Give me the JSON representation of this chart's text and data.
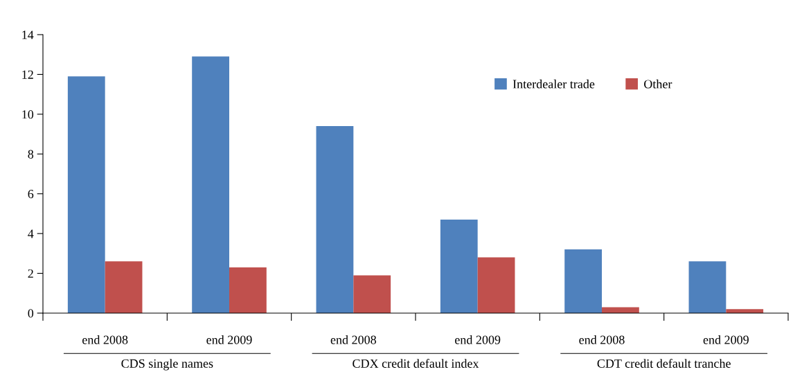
{
  "chart_data": {
    "type": "bar",
    "categories": [
      "end 2008",
      "end 2009",
      "end 2008",
      "end 2009",
      "end 2008",
      "end 2009"
    ],
    "series": [
      {
        "name": "Interdealer trade",
        "color": "#4f81bd",
        "values": [
          11.9,
          12.9,
          9.4,
          4.7,
          3.2,
          2.6
        ]
      },
      {
        "name": "Other",
        "color": "#c0504d",
        "values": [
          2.6,
          2.3,
          1.9,
          2.8,
          0.3,
          0.2
        ]
      }
    ],
    "annotations": [
      "CDS single names",
      "CDX credit default index",
      "CDT credit default tranche"
    ],
    "ylim": [
      0,
      14
    ],
    "yticks": [
      0,
      2,
      4,
      6,
      8,
      10,
      12,
      14
    ],
    "grid": false,
    "legend": "top right"
  }
}
